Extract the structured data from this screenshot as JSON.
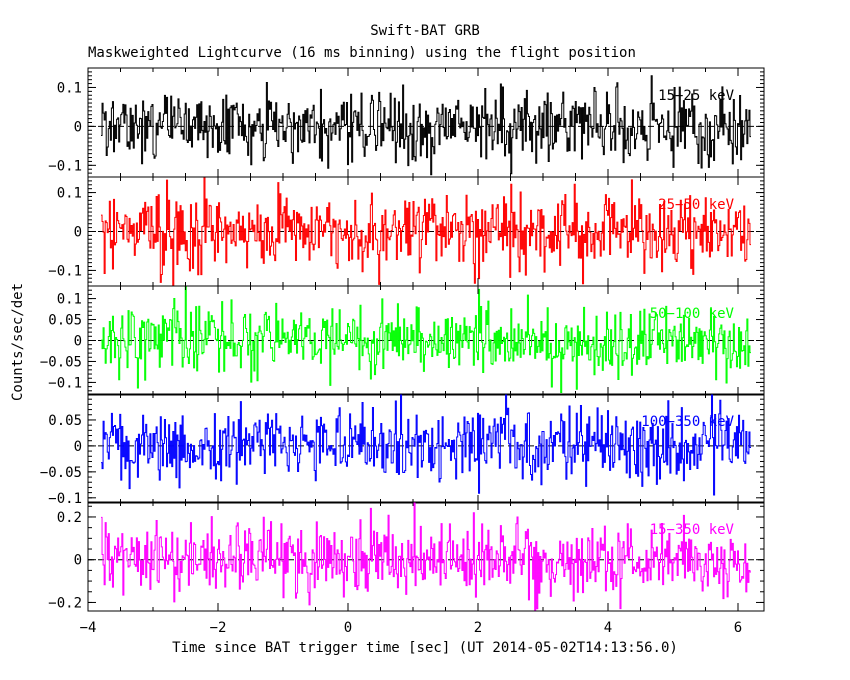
{
  "chart_data": {
    "type": "line",
    "title": "Swift-BAT GRB",
    "subtitle": "Maskweighted Lightcurve (16 ms binning) using the flight position",
    "xlabel": "Time since BAT trigger time [sec] (UT 2014-05-02T14:13:56.0)",
    "ylabel": "Counts/sec/det",
    "xlim": [
      -4.0,
      6.4
    ],
    "x_ticks": [
      "−4",
      "−2",
      "0",
      "2",
      "4",
      "6"
    ],
    "x_tick_values": [
      -4,
      -2,
      0,
      2,
      4,
      6
    ],
    "bin_width_sec": 0.016,
    "time_range": [
      -3.8,
      6.2
    ],
    "panels": [
      {
        "label": "15−25 keV",
        "color": "#000000",
        "ylim": [
          -0.13,
          0.15
        ],
        "y_ticks": [
          0.1,
          0,
          -0.1
        ],
        "y_tick_labels": [
          "0.1",
          "0",
          "−0.1"
        ],
        "noise_sd": 0.048
      },
      {
        "label": "25−50 keV",
        "color": "#ff0000",
        "ylim": [
          -0.14,
          0.14
        ],
        "y_ticks": [
          0.1,
          0,
          -0.1
        ],
        "y_tick_labels": [
          "0.1",
          "0",
          "−0.1"
        ],
        "noise_sd": 0.048
      },
      {
        "label": "50−100 keV",
        "color": "#00ff00",
        "ylim": [
          -0.13,
          0.13
        ],
        "y_ticks": [
          0.1,
          0.05,
          0,
          -0.05,
          -0.1
        ],
        "y_tick_labels": [
          "0.1",
          "0.05",
          "0",
          "−0.05",
          "−0.1"
        ],
        "noise_sd": 0.042
      },
      {
        "label": "100−350 keV",
        "color": "#0000ff",
        "ylim": [
          -0.11,
          0.1
        ],
        "y_ticks": [
          0.05,
          0,
          -0.05,
          -0.1
        ],
        "y_tick_labels": [
          "0.05",
          "0",
          "−0.05",
          "−0.1"
        ],
        "noise_sd": 0.035
      },
      {
        "label": "15−350 keV",
        "color": "#ff00ff",
        "ylim": [
          -0.24,
          0.27
        ],
        "y_ticks": [
          0.2,
          0,
          -0.2
        ],
        "y_tick_labels": [
          "0.2",
          "0",
          "−0.2"
        ],
        "noise_sd": 0.085
      }
    ]
  }
}
